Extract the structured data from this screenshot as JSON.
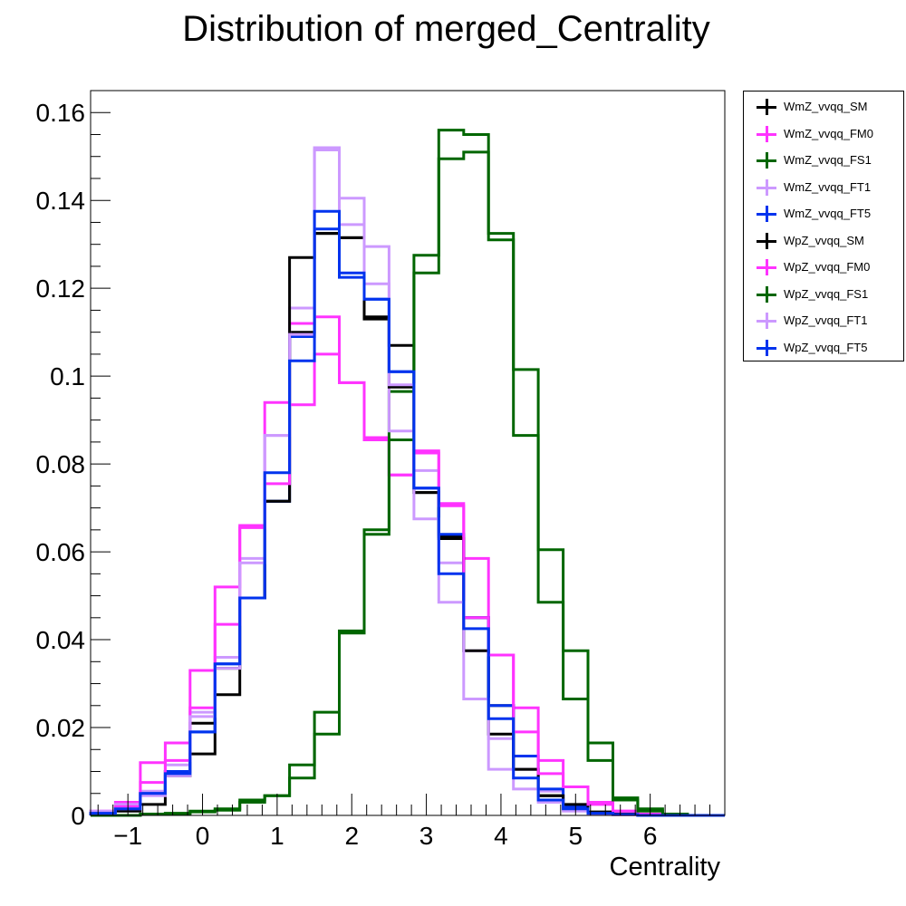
{
  "chart_data": {
    "type": "histogram",
    "title": "Distribution of merged_Centrality",
    "xlabel": "Centrality",
    "ylabel": "",
    "xlim": [
      -1.5,
      7.0
    ],
    "ylim": [
      0,
      0.165
    ],
    "x_ticks": [
      -1,
      0,
      1,
      2,
      3,
      4,
      5,
      6
    ],
    "x_tick_labels": [
      "−1",
      "0",
      "1",
      "2",
      "3",
      "4",
      "5",
      "6"
    ],
    "y_ticks": [
      0,
      0.02,
      0.04,
      0.06,
      0.08,
      0.1,
      0.12,
      0.14,
      0.16
    ],
    "y_tick_labels": [
      "0",
      "0.02",
      "0.04",
      "0.06",
      "0.08",
      "0.1",
      "0.12",
      "0.14",
      "0.16"
    ],
    "bin_edges": [
      -1.5,
      -1.1667,
      -0.8333,
      -0.5,
      -0.1667,
      0.1667,
      0.5,
      0.8333,
      1.1667,
      1.5,
      1.8333,
      2.1667,
      2.5,
      2.8333,
      3.1667,
      3.5,
      3.8333,
      4.1667,
      4.5,
      4.8333,
      5.1667,
      5.5,
      5.8333,
      6.1667,
      6.5,
      7.0
    ],
    "legend_position": "right",
    "series": [
      {
        "name": "WmZ_vvqq_SM",
        "color": "#000000",
        "values": [
          0.0005,
          0.0015,
          0.005,
          0.01,
          0.021,
          0.0335,
          0.0495,
          0.0715,
          0.11,
          0.1325,
          0.1315,
          0.113,
          0.107,
          0.0735,
          0.0635,
          0.045,
          0.025,
          0.0105,
          0.0045,
          0.0015,
          0.0005,
          0.0003,
          0.0001,
          0,
          0
        ]
      },
      {
        "name": "WmZ_vvqq_FM0",
        "color": "#ff33ff",
        "values": [
          0.001,
          0.003,
          0.012,
          0.0165,
          0.033,
          0.052,
          0.066,
          0.094,
          0.112,
          0.1135,
          0.0985,
          0.086,
          0.0775,
          0.083,
          0.071,
          0.0585,
          0.0365,
          0.0245,
          0.0125,
          0.0065,
          0.003,
          0.001,
          0.0003,
          0,
          0
        ]
      },
      {
        "name": "WmZ_vvqq_FS1",
        "color": "#006600",
        "values": [
          0,
          0,
          0.0003,
          0.0005,
          0.001,
          0.0015,
          0.0035,
          0.0045,
          0.0115,
          0.0235,
          0.042,
          0.065,
          0.0965,
          0.1275,
          0.156,
          0.155,
          0.131,
          0.1015,
          0.0605,
          0.0375,
          0.0165,
          0.004,
          0.0015,
          0.0003,
          0
        ]
      },
      {
        "name": "WmZ_vvqq_FT1",
        "color": "#cc99ff",
        "values": [
          0.001,
          0.0025,
          0.0055,
          0.0115,
          0.0235,
          0.036,
          0.0585,
          0.0865,
          0.1155,
          0.152,
          0.1405,
          0.1295,
          0.0875,
          0.0785,
          0.0575,
          0.0375,
          0.0175,
          0.0105,
          0.0055,
          0.002,
          0.0005,
          0.0002,
          0,
          0,
          0
        ]
      },
      {
        "name": "WmZ_vvqq_FT5",
        "color": "#0033ee",
        "values": [
          0.0005,
          0.0015,
          0.005,
          0.01,
          0.019,
          0.0345,
          0.0495,
          0.0715,
          0.109,
          0.1335,
          0.1225,
          0.1175,
          0.101,
          0.0745,
          0.064,
          0.045,
          0.025,
          0.0135,
          0.006,
          0.002,
          0.0005,
          0.0002,
          0,
          0,
          0
        ]
      },
      {
        "name": "WpZ_vvqq_SM",
        "color": "#000000",
        "values": [
          0.0003,
          0.001,
          0.0025,
          0.009,
          0.014,
          0.0275,
          0.0495,
          0.0715,
          0.127,
          0.1325,
          0.1315,
          0.1135,
          0.0975,
          0.0735,
          0.063,
          0.0375,
          0.0185,
          0.0105,
          0.0045,
          0.0025,
          0.0008,
          0.0003,
          0.0001,
          0,
          0
        ]
      },
      {
        "name": "WpZ_vvqq_FM0",
        "color": "#ff33ff",
        "values": [
          0.0005,
          0.002,
          0.0075,
          0.0125,
          0.0245,
          0.0435,
          0.0655,
          0.0755,
          0.0935,
          0.105,
          0.0985,
          0.0855,
          0.0775,
          0.0825,
          0.0705,
          0.045,
          0.0365,
          0.019,
          0.0095,
          0.0065,
          0.0025,
          0.001,
          0.0002,
          0,
          0
        ]
      },
      {
        "name": "WpZ_vvqq_FS1",
        "color": "#006600",
        "values": [
          0,
          0,
          0.0002,
          0.0004,
          0.0008,
          0.0012,
          0.003,
          0.0045,
          0.0085,
          0.0185,
          0.0415,
          0.064,
          0.0855,
          0.1235,
          0.1495,
          0.151,
          0.1325,
          0.0865,
          0.0485,
          0.0265,
          0.0125,
          0.0035,
          0.001,
          0.0002,
          0
        ]
      },
      {
        "name": "WpZ_vvqq_FT1",
        "color": "#cc99ff",
        "values": [
          0.0005,
          0.0015,
          0.0045,
          0.009,
          0.0225,
          0.0335,
          0.0575,
          0.0865,
          0.1095,
          0.1515,
          0.1345,
          0.121,
          0.098,
          0.0675,
          0.0485,
          0.0265,
          0.0105,
          0.006,
          0.003,
          0.001,
          0.0003,
          0.0001,
          0,
          0,
          0
        ]
      },
      {
        "name": "WpZ_vvqq_FT5",
        "color": "#0033ee",
        "values": [
          0.0005,
          0.0015,
          0.005,
          0.0095,
          0.019,
          0.0345,
          0.0495,
          0.078,
          0.1035,
          0.1375,
          0.1235,
          0.1175,
          0.101,
          0.0745,
          0.055,
          0.0425,
          0.022,
          0.0085,
          0.0035,
          0.0015,
          0.0005,
          0.0002,
          0,
          0,
          0
        ]
      }
    ]
  }
}
